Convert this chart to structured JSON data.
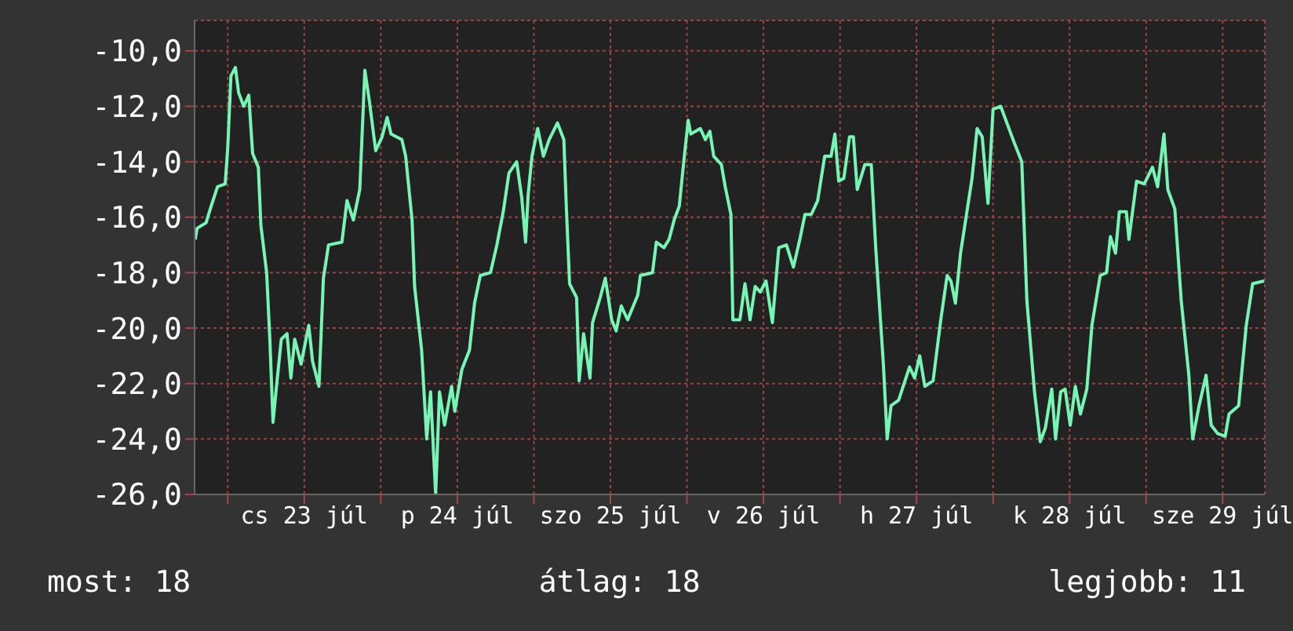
{
  "chart_data": {
    "type": "line",
    "x": [
      "--07-22T18:54",
      "--07-22T19:12",
      "--07-22T20:36",
      "--07-22T21:24",
      "--07-22T22:24",
      "--07-22T23:36",
      "--07-23T00:00",
      "--07-23T00:30",
      "--07-23T01:12",
      "--07-23T01:42",
      "--07-23T02:30",
      "--07-23T03:18",
      "--07-23T03:54",
      "--07-23T04:48",
      "--07-23T05:12",
      "--07-23T06:06",
      "--07-23T06:36",
      "--07-23T07:06",
      "--07-23T07:36",
      "--07-23T08:24",
      "--07-23T09:18",
      "--07-23T09:54",
      "--07-23T10:30",
      "--07-23T11:30",
      "--07-23T12:42",
      "--07-23T13:18",
      "--07-23T14:18",
      "--07-23T15:00",
      "--07-23T15:48",
      "--07-23T17:54",
      "--07-23T18:42",
      "--07-23T19:42",
      "--07-23T20:42",
      "--07-23T21:30",
      "--07-23T22:12",
      "--07-23T23:12",
      "--07-24T00:12",
      "--07-24T01:00",
      "--07-24T01:36",
      "--07-24T03:18",
      "--07-24T03:54",
      "--07-24T04:54",
      "--07-24T05:18",
      "--07-24T06:24",
      "--07-24T07:12",
      "--07-24T07:48",
      "--07-24T08:36",
      "--07-24T09:12",
      "--07-24T10:00",
      "--07-24T11:06",
      "--07-24T11:36",
      "--07-24T12:42",
      "--07-24T13:54",
      "--07-24T14:42",
      "--07-24T15:36",
      "--07-24T17:12",
      "--07-24T18:12",
      "--07-24T19:12",
      "--07-24T20:06",
      "--07-24T21:18",
      "--07-24T22:06",
      "--07-24T22:42",
      "--07-24T23:06",
      "--07-24T23:42",
      "--07-25T00:36",
      "--07-25T01:30",
      "--07-25T02:24",
      "--07-25T03:42",
      "--07-25T04:42",
      "--07-25T05:06",
      "--07-25T05:36",
      "--07-25T06:42",
      "--07-25T07:06",
      "--07-25T07:48",
      "--07-25T08:48",
      "--07-25T09:12",
      "--07-25T10:24",
      "--07-25T11:12",
      "--07-25T12:12",
      "--07-25T12:54",
      "--07-25T13:42",
      "--07-25T14:42",
      "--07-25T16:18",
      "--07-25T16:42",
      "--07-25T18:36",
      "--07-25T19:12",
      "--07-25T20:24",
      "--07-25T21:12",
      "--07-25T22:00",
      "--07-25T22:48",
      "--07-25T23:30",
      "--07-26T00:12",
      "--07-26T00:36",
      "--07-26T02:06",
      "--07-26T02:54",
      "--07-26T03:36",
      "--07-26T04:12",
      "--07-26T05:24",
      "--07-26T06:00",
      "--07-26T06:54",
      "--07-26T07:12",
      "--07-26T08:18",
      "--07-26T09:06",
      "--07-26T09:54",
      "--07-26T10:42",
      "--07-26T11:30",
      "--07-26T12:24",
      "--07-26T13:24",
      "--07-26T14:24",
      "--07-26T15:36",
      "--07-26T16:42",
      "--07-26T17:42",
      "--07-26T18:30",
      "--07-26T19:30",
      "--07-26T20:30",
      "--07-26T21:36",
      "--07-26T22:36",
      "--07-26T23:12",
      "--07-26T23:48",
      "--07-27T00:36",
      "--07-27T01:30",
      "--07-27T02:06",
      "--07-27T02:42",
      "--07-27T03:54",
      "--07-27T04:54",
      "--07-27T05:36",
      "--07-27T06:48",
      "--07-27T07:24",
      "--07-27T08:00",
      "--07-27T09:12",
      "--07-27T10:54",
      "--07-27T11:42",
      "--07-27T12:30",
      "--07-27T13:18",
      "--07-27T14:36",
      "--07-27T15:48",
      "--07-27T16:48",
      "--07-27T17:24",
      "--07-27T18:06",
      "--07-27T18:54",
      "--07-27T19:54",
      "--07-27T20:42",
      "--07-27T21:30",
      "--07-27T22:18",
      "--07-27T23:12",
      "--07-28T00:00",
      "--07-28T01:12",
      "--07-28T03:18",
      "--07-28T04:30",
      "--07-28T05:18",
      "--07-28T06:30",
      "--07-28T07:24",
      "--07-28T08:12",
      "--07-28T09:12",
      "--07-28T09:48",
      "--07-28T10:36",
      "--07-28T11:18",
      "--07-28T12:06",
      "--07-28T12:54",
      "--07-28T13:42",
      "--07-28T14:42",
      "--07-28T15:30",
      "--07-28T16:48",
      "--07-28T17:48",
      "--07-28T18:24",
      "--07-28T19:12",
      "--07-28T19:48",
      "--07-28T20:54",
      "--07-28T21:18",
      "--07-28T22:30",
      "--07-28T23:42",
      "--07-29T01:00",
      "--07-29T01:48",
      "--07-29T02:48",
      "--07-29T03:24",
      "--07-29T04:30",
      "--07-29T05:30",
      "--07-29T06:42",
      "--07-29T07:18",
      "--07-29T08:18",
      "--07-29T09:24",
      "--07-29T10:12",
      "--07-29T11:12",
      "--07-29T12:24",
      "--07-29T13:00",
      "--07-29T14:30",
      "--07-29T15:42",
      "--07-29T16:42",
      "--07-29T18:30"
    ],
    "series": [
      {
        "color": "#77f5b5",
        "values": [
          -16.8,
          -16.4,
          -16.2,
          -15.6,
          -14.9,
          -14.8,
          -13.5,
          -10.9,
          -10.6,
          -11.5,
          -12.0,
          -11.6,
          -13.7,
          -14.2,
          -16.3,
          -18.0,
          -20.4,
          -23.4,
          -22.2,
          -20.4,
          -20.2,
          -21.8,
          -20.4,
          -21.3,
          -19.9,
          -21.2,
          -22.1,
          -18.2,
          -17.0,
          -16.9,
          -15.4,
          -16.1,
          -15.0,
          -10.7,
          -11.8,
          -13.6,
          -13.1,
          -12.4,
          -13.0,
          -13.2,
          -13.8,
          -16.1,
          -18.5,
          -20.8,
          -24.0,
          -22.3,
          -26.0,
          -22.3,
          -23.5,
          -22.1,
          -23.0,
          -21.5,
          -20.8,
          -19.1,
          -18.1,
          -18.0,
          -17.0,
          -15.8,
          -14.4,
          -14.0,
          -15.3,
          -16.9,
          -15.2,
          -13.8,
          -12.8,
          -13.8,
          -13.2,
          -12.6,
          -13.2,
          -15.7,
          -18.4,
          -18.9,
          -21.9,
          -20.2,
          -21.8,
          -19.8,
          -18.9,
          -18.2,
          -19.7,
          -20.1,
          -19.2,
          -19.7,
          -18.8,
          -18.1,
          -18.0,
          -16.9,
          -17.1,
          -16.8,
          -16.1,
          -15.6,
          -14.0,
          -12.5,
          -13.0,
          -12.8,
          -13.2,
          -12.9,
          -13.8,
          -14.1,
          -14.9,
          -15.9,
          -19.7,
          -19.7,
          -18.4,
          -19.7,
          -18.5,
          -18.7,
          -18.3,
          -19.8,
          -17.1,
          -17.0,
          -17.8,
          -16.8,
          -15.9,
          -15.9,
          -15.4,
          -13.8,
          -13.8,
          -13.0,
          -14.7,
          -14.6,
          -13.1,
          -13.1,
          -15.0,
          -14.1,
          -14.1,
          -17.1,
          -21.3,
          -24.0,
          -22.8,
          -22.6,
          -21.4,
          -21.8,
          -21.0,
          -22.1,
          -21.9,
          -19.7,
          -18.1,
          -18.3,
          -19.1,
          -17.3,
          -15.8,
          -14.6,
          -12.8,
          -13.1,
          -15.5,
          -12.1,
          -12.0,
          -13.3,
          -14.0,
          -19.0,
          -22.3,
          -24.1,
          -23.6,
          -22.2,
          -24.0,
          -22.3,
          -22.2,
          -23.5,
          -22.1,
          -23.1,
          -22.2,
          -19.9,
          -18.1,
          -18.0,
          -16.7,
          -17.3,
          -15.8,
          -15.8,
          -16.8,
          -14.7,
          -14.8,
          -14.2,
          -14.9,
          -13.0,
          -15.0,
          -15.7,
          -19.0,
          -21.7,
          -24.0,
          -22.8,
          -21.7,
          -23.5,
          -23.8,
          -23.9,
          -23.1,
          -22.8,
          -19.9,
          -18.4,
          -18.3
        ]
      }
    ],
    "xlim": [
      "--07-22T18:48",
      "--07-29T18:36"
    ],
    "xticks": [
      {
        "value": "--07-23T00:00",
        "label": null
      },
      {
        "value": "--07-23T12:00",
        "label": "cs 23 júl"
      },
      {
        "value": "--07-24T00:00",
        "label": null
      },
      {
        "value": "--07-24T12:00",
        "label": "p 24 júl"
      },
      {
        "value": "--07-25T00:00",
        "label": null
      },
      {
        "value": "--07-25T12:00",
        "label": "szo 25 júl"
      },
      {
        "value": "--07-26T00:00",
        "label": null
      },
      {
        "value": "--07-26T12:00",
        "label": "v 26 júl"
      },
      {
        "value": "--07-27T00:00",
        "label": null
      },
      {
        "value": "--07-27T12:00",
        "label": "h 27 júl"
      },
      {
        "value": "--07-28T00:00",
        "label": null
      },
      {
        "value": "--07-28T12:00",
        "label": "k 28 júl"
      },
      {
        "value": "--07-29T00:00",
        "label": null
      },
      {
        "value": "--07-29T12:00",
        "label": "sze 29 júl"
      }
    ],
    "ylim": [
      -26,
      -8.9
    ],
    "yticks": [
      {
        "value": -26,
        "label": "-26,0"
      },
      {
        "value": -24,
        "label": "-24,0"
      },
      {
        "value": -22,
        "label": "-22,0"
      },
      {
        "value": -20,
        "label": "-20,0"
      },
      {
        "value": -18,
        "label": "-18,0"
      },
      {
        "value": -16,
        "label": "-16,0"
      },
      {
        "value": -14,
        "label": "-14,0"
      },
      {
        "value": -12,
        "label": "-12,0"
      },
      {
        "value": -10,
        "label": "-10,0"
      }
    ],
    "grid": true,
    "marker": "none",
    "line_style": "solid",
    "annotations": [
      "most: 18",
      "átlag: 18",
      "legjobb: 11"
    ]
  }
}
